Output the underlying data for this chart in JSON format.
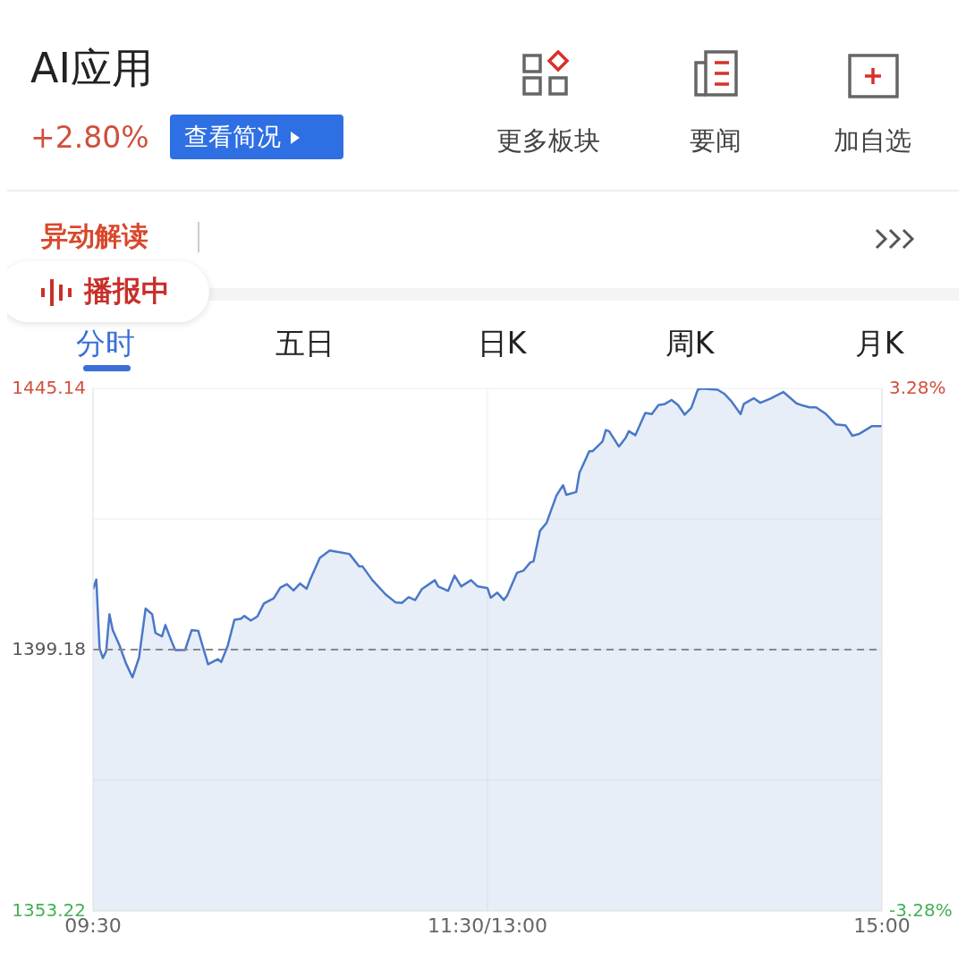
{
  "chart_data": {
    "type": "area",
    "title": "AI应用",
    "subtitle": "+2.80%",
    "annotations": [
      "查看简况",
      "更多板块",
      "要闻",
      "加自选",
      "异动解读",
      "播报中",
      "分时",
      "五日",
      "日K",
      "周K",
      "月K"
    ],
    "categories": [
      "09:30",
      null,
      null,
      null,
      null,
      null,
      null,
      null,
      null,
      null,
      null,
      null,
      null,
      null,
      null,
      null,
      null,
      null,
      null,
      null,
      null,
      null,
      null,
      null,
      null,
      null,
      null,
      null,
      null,
      null,
      null,
      null,
      null,
      null,
      null,
      null,
      null,
      null,
      null,
      null,
      null,
      null,
      null,
      null,
      null,
      null,
      null,
      null,
      null,
      null,
      null,
      null,
      null,
      null,
      null,
      null,
      null,
      null,
      null,
      null,
      null,
      null,
      null,
      null,
      null,
      null,
      null,
      null,
      null,
      null,
      null,
      null,
      null,
      null,
      null,
      null,
      null,
      null,
      null,
      null,
      null,
      null,
      null,
      null,
      null,
      null,
      null,
      null,
      null,
      null,
      null,
      null,
      null,
      null,
      null,
      null,
      null,
      null,
      null,
      null,
      null,
      null,
      null,
      null,
      null,
      null,
      null,
      null,
      null,
      null,
      null,
      null,
      null,
      null,
      null,
      null,
      null,
      null,
      null,
      null,
      "11:30/13:00",
      null,
      null,
      null,
      null,
      null,
      null,
      null,
      null,
      null,
      null,
      null,
      null,
      null,
      null,
      null,
      null,
      null,
      null,
      null,
      null,
      null,
      null,
      null,
      null,
      null,
      null,
      null,
      null,
      null,
      null,
      null,
      null,
      null,
      null,
      null,
      null,
      null,
      null,
      null,
      null,
      null,
      null,
      null,
      null,
      null,
      null,
      null,
      null,
      null,
      null,
      null,
      null,
      null,
      null,
      null,
      null,
      null,
      null,
      null,
      null,
      null,
      null,
      null,
      null,
      null,
      null,
      null,
      null,
      null,
      null,
      null,
      null,
      null,
      null,
      null,
      null,
      null,
      null,
      null,
      null,
      null,
      null,
      null,
      null,
      null,
      null,
      null,
      null,
      null,
      null,
      null,
      null,
      null,
      null,
      null,
      null,
      null,
      null,
      null,
      null,
      null,
      null,
      null,
      null,
      null,
      null,
      null,
      null,
      null,
      null,
      null,
      null,
      null,
      null,
      null,
      null,
      null,
      null,
      null,
      "15:00"
    ],
    "series": [
      {
        "color": "#4a78c8",
        "values": [
          1409.8,
          1411.5,
          1399.4,
          1397.7,
          1398.9,
          1405.4,
          1402.6,
          null,
          1400,
          null,
          1396.8,
          null,
          1394.3,
          null,
          1397.8,
          1402.1,
          1406.4,
          null,
          1405.4,
          1402.1,
          null,
          1401.5,
          1403.5,
          null,
          1400.5,
          1399.1,
          null,
          null,
          1399.1,
          null,
          1402.6,
          null,
          1402.5,
          1400.5,
          null,
          1396.6,
          null,
          null,
          1397.5,
          1397,
          null,
          1399.9,
          null,
          1404.4,
          null,
          1404.6,
          1405.1,
          null,
          1404.3,
          null,
          1405,
          null,
          1407.3,
          null,
          null,
          1408.2,
          null,
          1410.1,
          null,
          1410.7,
          null,
          1409.6,
          null,
          1410.8,
          null,
          1409.9,
          1411.4,
          null,
          null,
          1415.3,
          null,
          null,
          1416.6,
          null,
          1416.4,
          null,
          null,
          null,
          1416,
          null,
          null,
          1413.8,
          1413.8,
          null,
          null,
          1411.4,
          null,
          null,
          null,
          1408.9,
          null,
          null,
          1407.5,
          null,
          1407.4,
          null,
          1408.4,
          null,
          1407.9,
          null,
          1409.8,
          null,
          null,
          null,
          1411.4,
          1410.3,
          null,
          null,
          1409.5,
          null,
          1412.2,
          null,
          1410.3,
          null,
          null,
          1411.4,
          null,
          1410.3,
          null,
          null,
          1410,
          1408.3,
          null,
          1409.2,
          null,
          1407.9,
          1408.7,
          null,
          null,
          1412.7,
          null,
          1413.1,
          null,
          1414.5,
          1414.7,
          null,
          1420.1,
          null,
          1421.5,
          null,
          null,
          1426.3,
          null,
          1428.1,
          1426.4,
          null,
          null,
          1426.9,
          1430.3,
          null,
          null,
          1434.1,
          1434.1,
          null,
          null,
          1435.8,
          1437.8,
          1437.6,
          null,
          null,
          1434.9,
          null,
          1436.4,
          1437.6,
          null,
          1436.9,
          null,
          null,
          1440.8,
          null,
          1440.6,
          null,
          1442.2,
          null,
          1442.4,
          null,
          1443.1,
          null,
          1442.2,
          null,
          1440.5,
          null,
          1441.7,
          null,
          1444.9,
          1445.1,
          null,
          null,
          null,
          null,
          1444.9,
          null,
          1444.2,
          null,
          1443,
          null,
          null,
          1440.6,
          1442.4,
          null,
          null,
          1443.4,
          null,
          1442.6,
          null,
          null,
          1443.3,
          null,
          null,
          null,
          1444.5,
          null,
          null,
          null,
          1442.5,
          null,
          1442.1,
          null,
          1441.8,
          null,
          1441.8,
          null,
          null,
          1440.6,
          null,
          null,
          1438.8,
          null,
          null,
          1438.6,
          null,
          1436.8,
          null,
          1437.1,
          null,
          null,
          null,
          1438.5,
          null,
          null,
          1438.5
        ]
      }
    ],
    "ylim": [
      1353.22,
      1445.14
    ],
    "yticks": [
      1353.22,
      {
        "value": 1376.2,
        "label": null
      },
      1399.18,
      {
        "value": 1422.16,
        "label": null
      },
      1445.14
    ],
    "y2lim": [
      -3.28,
      3.28
    ],
    "y2ticks": [
      {
        "value": -3.28,
        "label": "-3.28%"
      },
      {
        "value": 3.28,
        "label": "3.28%"
      }
    ],
    "ref_lines": [
      {
        "axis": "y",
        "value": 1399.18,
        "label": null,
        "color": "#888888",
        "line_style": "dashed"
      }
    ],
    "grid": true
  }
}
